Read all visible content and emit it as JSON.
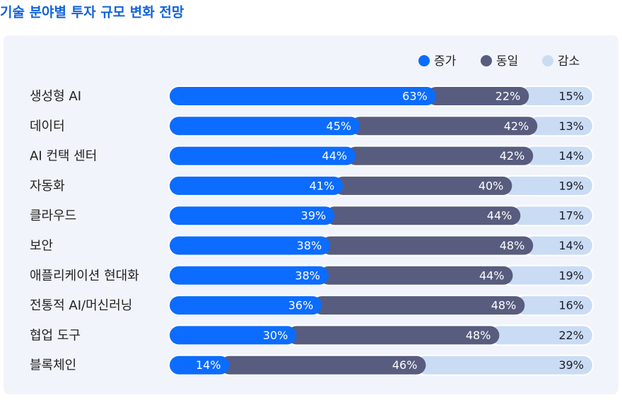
{
  "chart_data": {
    "type": "stacked-bar-horizontal",
    "title": "기술 분야별 투자 규모 변화 전망",
    "categories": [
      "생성형 AI",
      "데이터",
      "AI 컨택 센터",
      "자동화",
      "클라우드",
      "보안",
      "애플리케이션 현대화",
      "전통적 AI/머신러닝",
      "협업 도구",
      "블록체인"
    ],
    "legend_position": "top-right",
    "series": [
      {
        "name": "증가",
        "color": "#0b6cff",
        "values": [
          63,
          45,
          44,
          41,
          39,
          38,
          38,
          36,
          30,
          14
        ],
        "value_labels": [
          "63%",
          "45%",
          "44%",
          "41%",
          "39%",
          "38%",
          "38%",
          "36%",
          "30%",
          "14%"
        ]
      },
      {
        "name": "동일",
        "color": "#585c7e",
        "values": [
          22,
          42,
          42,
          40,
          44,
          48,
          44,
          48,
          48,
          46
        ],
        "value_labels": [
          "22%",
          "42%",
          "42%",
          "40%",
          "44%",
          "48%",
          "44%",
          "48%",
          "48%",
          "46%"
        ]
      },
      {
        "name": "감소",
        "color": "#cadcf4",
        "values": [
          15,
          13,
          14,
          19,
          17,
          14,
          19,
          16,
          22,
          39
        ],
        "value_labels": [
          "15%",
          "13%",
          "14%",
          "19%",
          "17%",
          "14%",
          "19%",
          "16%",
          "22%",
          "39%"
        ]
      }
    ]
  }
}
